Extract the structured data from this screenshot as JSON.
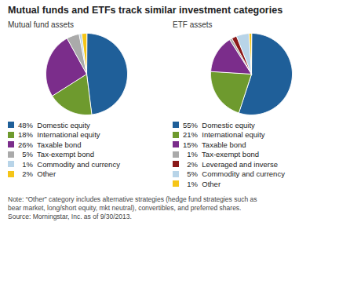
{
  "title": "Mutual funds and ETFs track similar investment categories",
  "annotations": [
    "Note: “Other” category includes alternative strategies (hedge fund strategies such as",
    "bear market, long/short equity, mkt neutral), convertibles, and preferred shares.",
    "Source: Morningstar, Inc. as of 9/30/2013."
  ],
  "chart_data": [
    {
      "type": "pie",
      "subtitle": "Mutual fund assets",
      "categories": [
        "48%  Domestic equity",
        "18%  International equity",
        "26%  Taxable bond",
        "  5%  Tax-exempt bond",
        "  1%  Commodity and currency",
        "  2%  Other"
      ],
      "values": [
        48,
        18,
        26,
        5,
        1,
        2
      ],
      "colors": [
        "#1f5f99",
        "#6e9a2e",
        "#7b2d8b",
        "#aaaaaa",
        "#b8d4e8",
        "#f5c518"
      ],
      "legend": "bottom"
    },
    {
      "type": "pie",
      "subtitle": "ETF assets",
      "categories": [
        "55%  Domestic equity",
        "21%  International equity",
        "15%  Taxable bond",
        "  1%  Tax-exempt bond",
        "  2%  Leveraged and inverse",
        "  5%  Commodity and currency",
        "  1%  Other"
      ],
      "values": [
        55,
        21,
        15,
        1,
        2,
        5,
        1
      ],
      "colors": [
        "#1f5f99",
        "#6e9a2e",
        "#7b2d8b",
        "#aaaaaa",
        "#8b1a1a",
        "#b8d4e8",
        "#f5c518"
      ],
      "legend": "bottom"
    }
  ]
}
